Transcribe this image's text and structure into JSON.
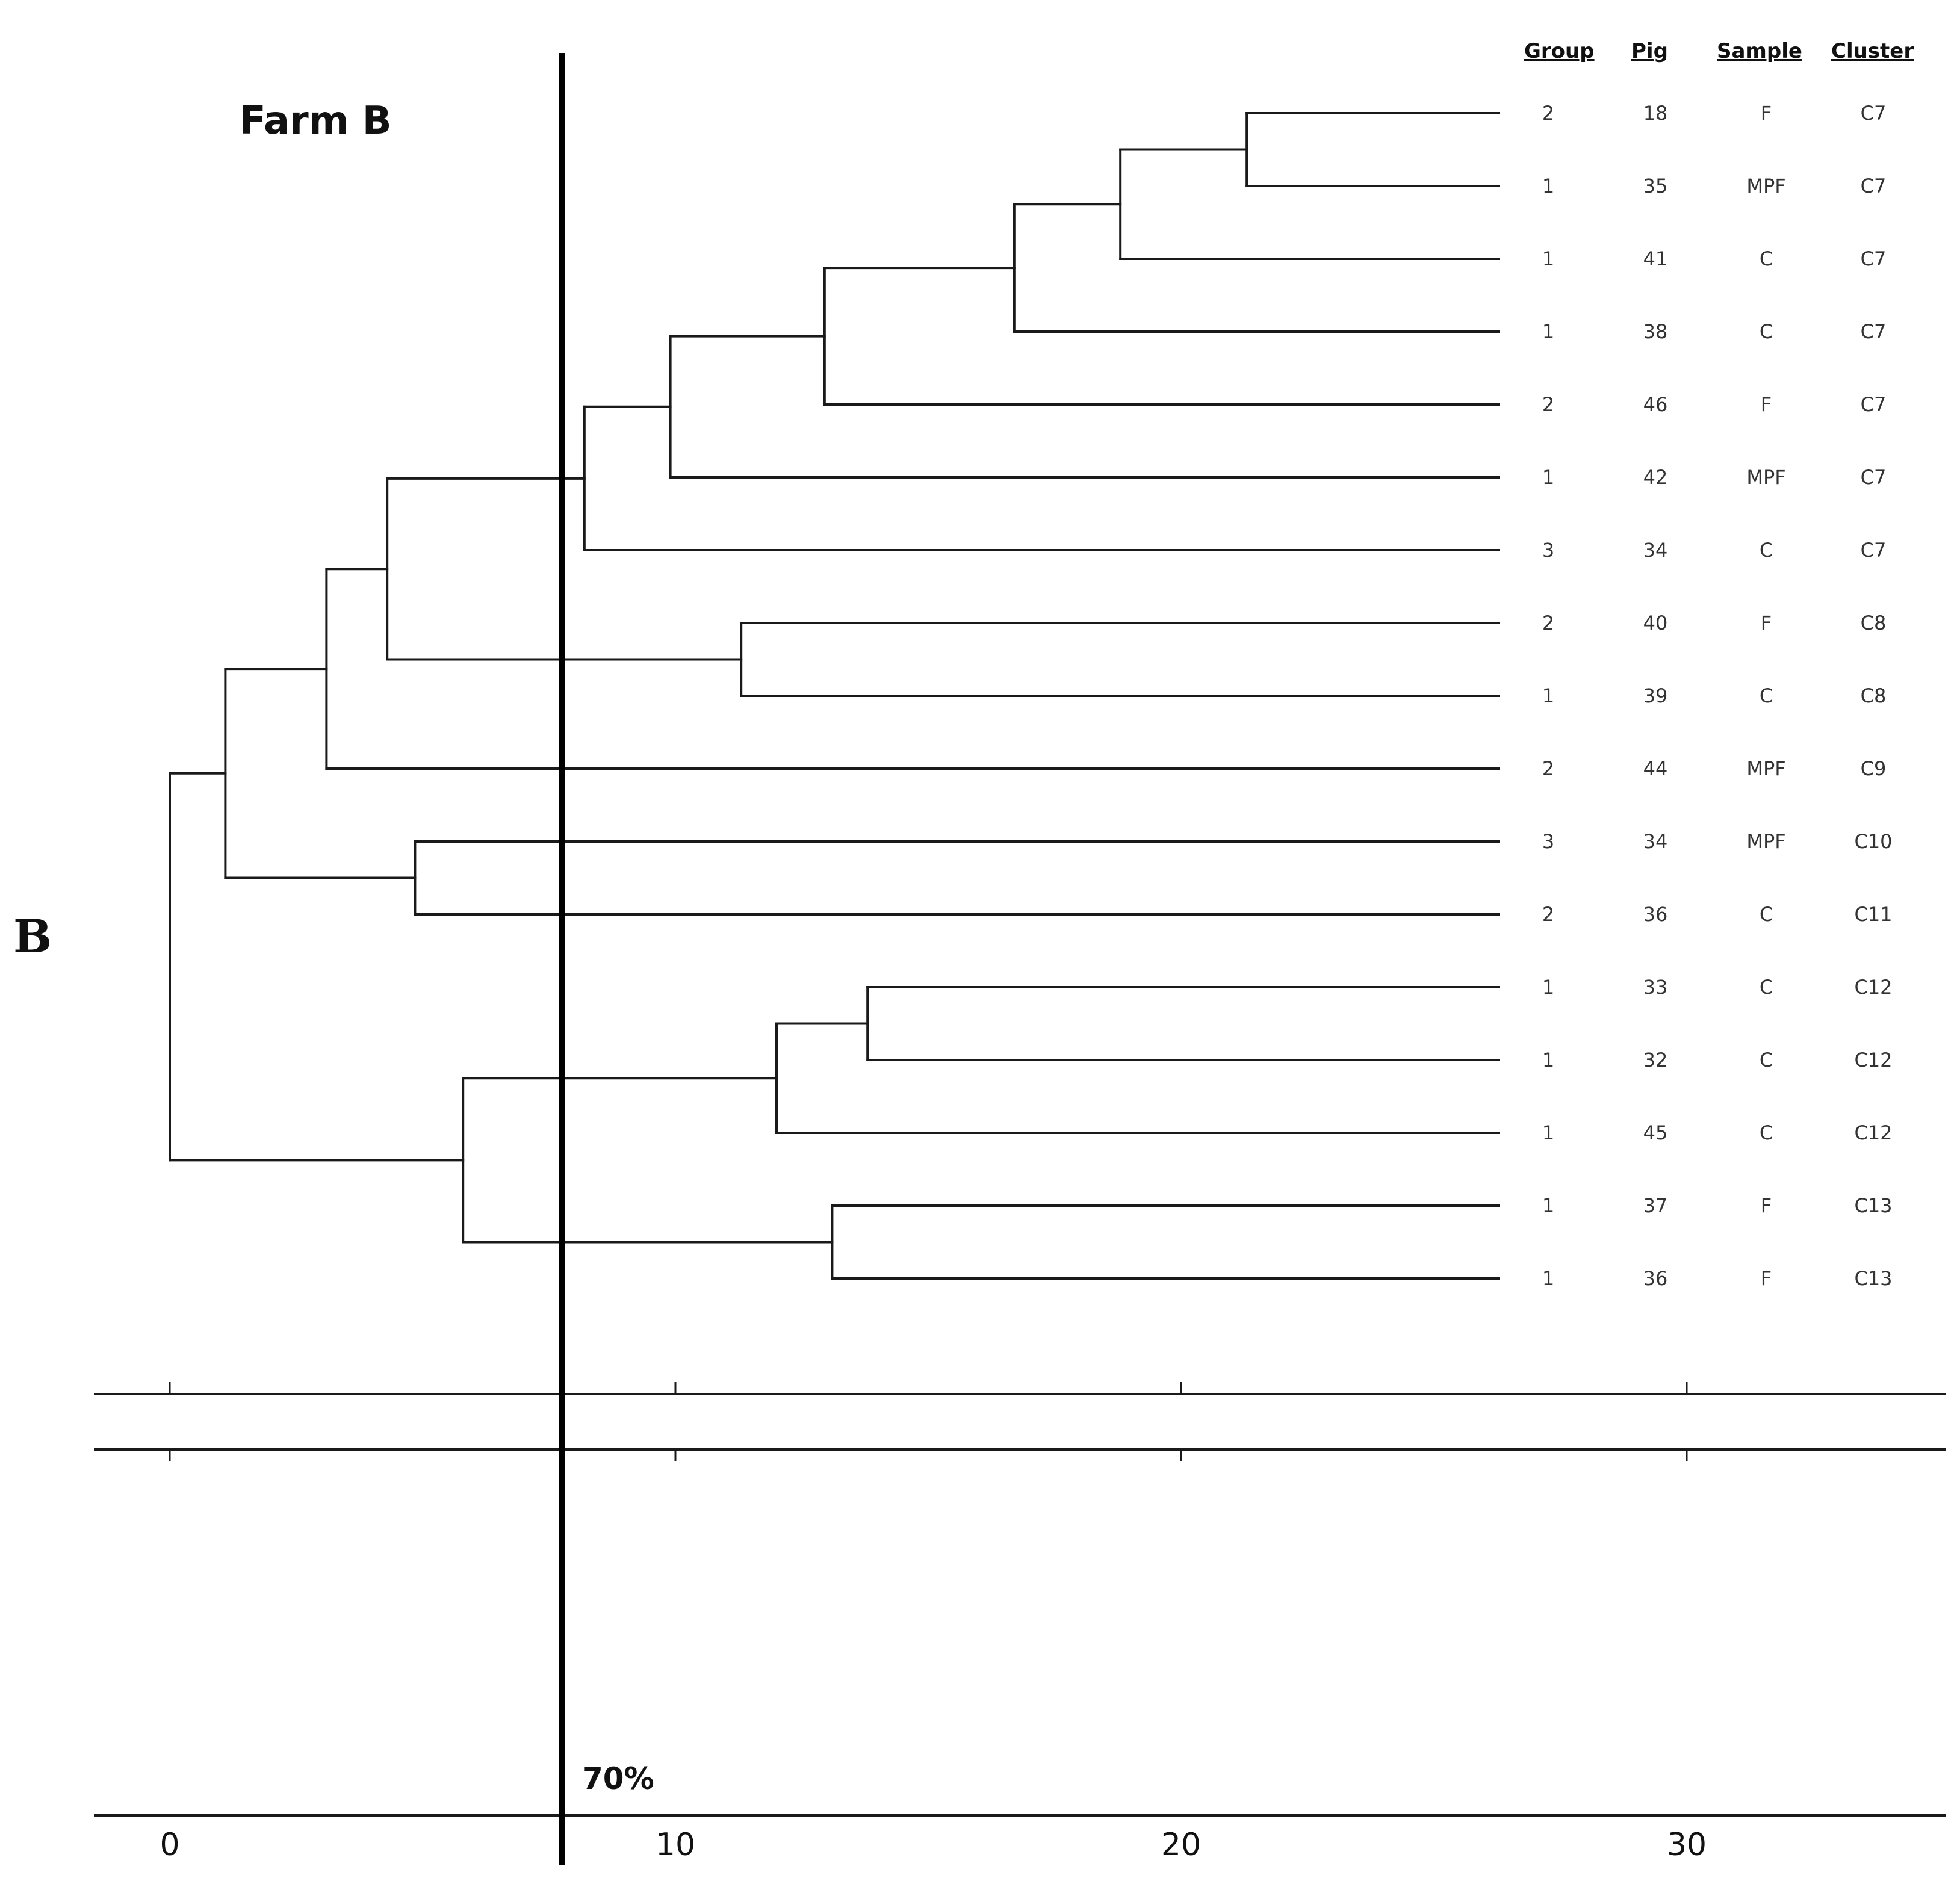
{
  "panel_label": "B",
  "chart_data": {
    "type": "dendrogram",
    "title": "Farm B",
    "cutoff": {
      "label": "70%",
      "x": 7.75
    },
    "axis": {
      "ticks": [
        0,
        10,
        20,
        30
      ],
      "xlim": [
        -1.5,
        35.5
      ]
    },
    "columns": [
      "Group",
      "Pig",
      "Sample",
      "Cluster"
    ],
    "leaves": [
      {
        "group": "2",
        "pig": "18",
        "sample": "F",
        "cluster": "C7"
      },
      {
        "group": "1",
        "pig": "35",
        "sample": "MPF",
        "cluster": "C7"
      },
      {
        "group": "1",
        "pig": "41",
        "sample": "C",
        "cluster": "C7"
      },
      {
        "group": "1",
        "pig": "38",
        "sample": "C",
        "cluster": "C7"
      },
      {
        "group": "2",
        "pig": "46",
        "sample": "F",
        "cluster": "C7"
      },
      {
        "group": "1",
        "pig": "42",
        "sample": "MPF",
        "cluster": "C7"
      },
      {
        "group": "3",
        "pig": "34",
        "sample": "C",
        "cluster": "C7"
      },
      {
        "group": "2",
        "pig": "40",
        "sample": "F",
        "cluster": "C8"
      },
      {
        "group": "1",
        "pig": "39",
        "sample": "C",
        "cluster": "C8"
      },
      {
        "group": "2",
        "pig": "44",
        "sample": "MPF",
        "cluster": "C9"
      },
      {
        "group": "3",
        "pig": "34",
        "sample": "MPF",
        "cluster": "C10"
      },
      {
        "group": "2",
        "pig": "36",
        "sample": "C",
        "cluster": "C11"
      },
      {
        "group": "1",
        "pig": "33",
        "sample": "C",
        "cluster": "C12"
      },
      {
        "group": "1",
        "pig": "32",
        "sample": "C",
        "cluster": "C12"
      },
      {
        "group": "1",
        "pig": "45",
        "sample": "C",
        "cluster": "C12"
      },
      {
        "group": "1",
        "pig": "37",
        "sample": "F",
        "cluster": "C13"
      },
      {
        "group": "1",
        "pig": "36",
        "sample": "F",
        "cluster": "C13"
      }
    ],
    "merges": [
      {
        "id": "n1",
        "children": [
          0,
          1
        ],
        "x": 21.3
      },
      {
        "id": "n2",
        "children": [
          "n1",
          2
        ],
        "x": 18.8
      },
      {
        "id": "n3",
        "children": [
          "n2",
          3
        ],
        "x": 16.7
      },
      {
        "id": "n4",
        "children": [
          "n3",
          4
        ],
        "x": 12.95
      },
      {
        "id": "n5",
        "children": [
          "n4",
          5
        ],
        "x": 9.9
      },
      {
        "id": "n6",
        "children": [
          "n5",
          6
        ],
        "x": 8.2
      },
      {
        "id": "n7",
        "children": [
          7,
          8
        ],
        "x": 11.3
      },
      {
        "id": "n8",
        "children": [
          "n6",
          "n7"
        ],
        "x": 4.3
      },
      {
        "id": "n9",
        "children": [
          "n8",
          9
        ],
        "x": 3.1
      },
      {
        "id": "n10",
        "children": [
          10,
          11
        ],
        "x": 4.85
      },
      {
        "id": "n11",
        "children": [
          "n9",
          "n10"
        ],
        "x": 1.1
      },
      {
        "id": "n12",
        "children": [
          12,
          13
        ],
        "x": 13.8
      },
      {
        "id": "n13",
        "children": [
          "n12",
          14
        ],
        "x": 12.0
      },
      {
        "id": "n14",
        "children": [
          15,
          16
        ],
        "x": 13.1
      },
      {
        "id": "n15",
        "children": [
          "n13",
          "n14"
        ],
        "x": 5.8
      },
      {
        "id": "n16",
        "children": [
          "n11",
          "n15"
        ],
        "x": 0.0
      }
    ]
  }
}
